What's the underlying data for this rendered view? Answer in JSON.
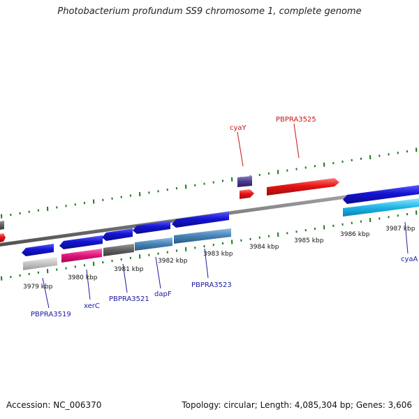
{
  "title": "Photobacterium profundum SS9 chromosome 1, complete genome",
  "footer": {
    "accession": "Accession: NC_006370",
    "summary": "Topology: circular; Length: 4,085,304 bp; Genes: 3,606"
  },
  "colors": {
    "backbone": "#7d7d7d",
    "ticks": "#1a7a1a",
    "gene_blue": "#1414d2",
    "gene_red": "#e61414",
    "gene_purple": "#4a3c8c",
    "gene_gray": "#606060",
    "gene_silver": "#c4c4c4",
    "gene_magenta": "#e0147a",
    "gene_steel": "#4682b4",
    "gene_cyan": "#1eb4e6",
    "label_blue": "#1a1aa0",
    "label_red": "#c81414"
  },
  "ruler_labels": [
    "3979 kbp",
    "3980 kbp",
    "3981 kbp",
    "3982 kbp",
    "3983 kbp",
    "3984 kbp",
    "3985 kbp",
    "3986 kbp",
    "3987 kbp"
  ],
  "gene_labels": {
    "cyaY": "cyaY",
    "pbpra3525": "PBPRA3525",
    "pbpra3519": "PBPRA3519",
    "xerC": "xerC",
    "pbpra3521": "PBPRA3521",
    "dapF": "dapF",
    "pbpra3523": "PBPRA3523",
    "cyaA": "cyaA"
  }
}
